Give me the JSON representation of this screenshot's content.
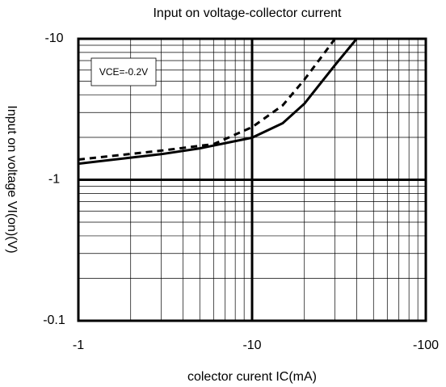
{
  "chart_data": {
    "type": "line",
    "title": "Input on voltage-collector current",
    "xlabel": "colector curent IC(mA)",
    "ylabel": "Input on voltage VI(on)(V)",
    "annotation": "VCE=-0.2V",
    "xscale": "log",
    "yscale": "log",
    "xlim": [
      -1,
      -100
    ],
    "ylim": [
      -0.1,
      -10
    ],
    "xticks": [
      -1,
      -10,
      -100
    ],
    "yticks": [
      -0.1,
      -1,
      -10
    ],
    "grid": true,
    "minor_grid": true,
    "series": [
      {
        "color": "#000000",
        "dash": false,
        "x": [
          -1,
          -3,
          -5,
          -10,
          -15,
          -20,
          -30,
          -40
        ],
        "values": [
          -1.3,
          -1.52,
          -1.67,
          -1.99,
          -2.52,
          -3.46,
          -6.5,
          -10
        ]
      },
      {
        "color": "#000000",
        "dash": true,
        "x": [
          -1,
          -3,
          -6,
          -10,
          -15,
          -20,
          -25,
          -30
        ],
        "values": [
          -1.39,
          -1.61,
          -1.79,
          -2.36,
          -3.37,
          -5.13,
          -7.4,
          -10
        ]
      }
    ]
  }
}
